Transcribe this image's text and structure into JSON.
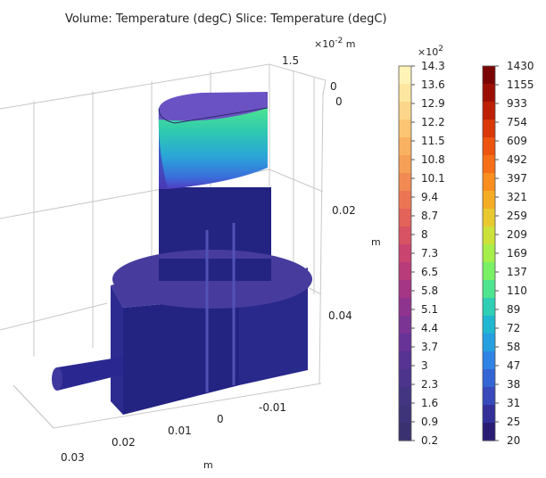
{
  "chart_data": {
    "type": "3d-volume-slice",
    "title": "Volume: Temperature (degC)  Slice: Temperature (degC)",
    "axes": {
      "z_axis": {
        "unit": "m",
        "multiplier_base": "×10",
        "multiplier_exp": "-2",
        "ticks": [
          "1.5",
          "0"
        ]
      },
      "y_axis": {
        "unit": "m",
        "ticks": [
          "0",
          "0.02",
          "0.04"
        ]
      },
      "x_axis": {
        "unit": "m",
        "ticks": [
          "0.03",
          "0.02",
          "0.01",
          "0",
          "-0.01"
        ]
      }
    },
    "colorbars": [
      {
        "name": "Volume: Temperature",
        "multiplier_base": "×10",
        "multiplier_exp": "2",
        "labels": [
          "14.3",
          "13.6",
          "12.9",
          "12.2",
          "11.5",
          "10.8",
          "10.1",
          "9.4",
          "8.7",
          "8",
          "7.3",
          "6.5",
          "5.8",
          "5.1",
          "4.4",
          "3.7",
          "3",
          "2.3",
          "1.6",
          "0.9",
          "0.2"
        ],
        "colors": [
          "#fff3b8",
          "#fde7a0",
          "#fcd68a",
          "#fbc574",
          "#f9b261",
          "#f69f57",
          "#f28a53",
          "#ec7654",
          "#e3625a",
          "#d75263",
          "#c9456f",
          "#b83c7a",
          "#a43685",
          "#8f348e",
          "#7b3494",
          "#673396",
          "#573393",
          "#4c348c",
          "#443583",
          "#3e3479",
          "#3a3270"
        ]
      },
      {
        "name": "Slice: Temperature",
        "labels": [
          "1430",
          "1155",
          "933",
          "754",
          "609",
          "492",
          "397",
          "321",
          "259",
          "209",
          "169",
          "137",
          "110",
          "89",
          "72",
          "58",
          "47",
          "38",
          "31",
          "25",
          "20"
        ],
        "colors": [
          "#7a0403",
          "#9b0f03",
          "#bd2002",
          "#d93807",
          "#ec540f",
          "#f66f18",
          "#f98e1f",
          "#f5ac25",
          "#e8c930",
          "#cde13b",
          "#a6ee4a",
          "#7af065",
          "#4fe58e",
          "#2ecfb4",
          "#21b7d0",
          "#269fe0",
          "#2f83e3",
          "#3465d5",
          "#3749bb",
          "#33309a",
          "#2a1c74"
        ]
      }
    ]
  }
}
